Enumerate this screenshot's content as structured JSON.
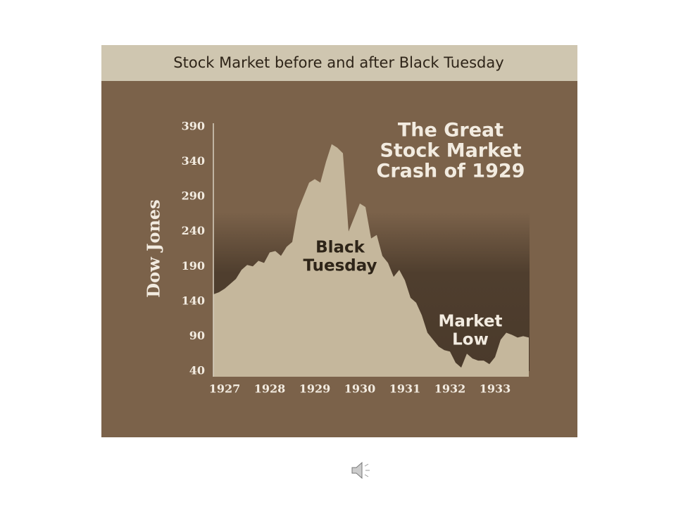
{
  "chart_data": {
    "type": "area",
    "title": "Stock Market before and after Black Tuesday",
    "y_label": "Dow Jones",
    "annotations": [
      [
        "The Great",
        "Stock Market",
        "Crash of 1929"
      ],
      [
        "Black",
        "Tuesday"
      ],
      [
        "Market",
        "Low"
      ]
    ],
    "categories": [
      null,
      null,
      "1927",
      null,
      null,
      null,
      null,
      null,
      null,
      null,
      "1928",
      null,
      null,
      null,
      null,
      null,
      null,
      null,
      "1929",
      null,
      null,
      null,
      null,
      null,
      null,
      null,
      "1930",
      null,
      null,
      null,
      null,
      null,
      null,
      null,
      "1931",
      null,
      null,
      null,
      null,
      null,
      null,
      null,
      "1932",
      null,
      null,
      null,
      null,
      null,
      null,
      null,
      "1933",
      null,
      null,
      null,
      null,
      null,
      null
    ],
    "values": [
      150,
      153,
      158,
      165,
      172,
      185,
      192,
      190,
      198,
      195,
      210,
      212,
      205,
      218,
      225,
      270,
      290,
      310,
      315,
      310,
      340,
      365,
      360,
      352,
      240,
      260,
      280,
      275,
      230,
      235,
      205,
      195,
      175,
      185,
      170,
      145,
      138,
      120,
      95,
      85,
      75,
      70,
      68,
      52,
      45,
      65,
      58,
      55,
      55,
      50,
      60,
      85,
      95,
      92,
      88,
      90,
      88
    ],
    "color": "#c5b79c",
    "ylim": [
      40,
      390
    ],
    "yticks": [
      40,
      90,
      140,
      190,
      240,
      290,
      340,
      390
    ]
  }
}
